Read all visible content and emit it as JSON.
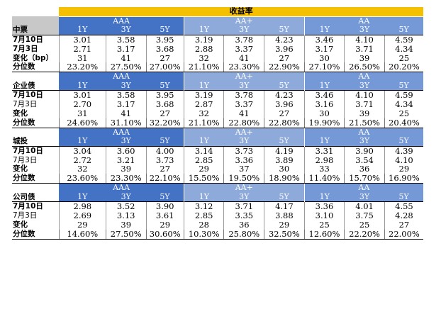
{
  "title": "收益率",
  "grade_labels": [
    "AAA",
    "AA+",
    "AA"
  ],
  "tenor_labels": [
    "1Y",
    "3Y",
    "5Y"
  ],
  "sections": [
    {
      "name": "中票",
      "rows": [
        {
          "label": "7月10日",
          "values": [
            "3.01",
            "3.58",
            "3.95",
            "3.19",
            "3.78",
            "4.23",
            "3.46",
            "4.10",
            "4.59"
          ]
        },
        {
          "label": "7月3日",
          "values": [
            "2.71",
            "3.17",
            "3.68",
            "2.88",
            "3.37",
            "3.96",
            "3.17",
            "3.71",
            "4.34"
          ]
        },
        {
          "label": "变化（bp）",
          "values": [
            "31",
            "41",
            "27",
            "32",
            "41",
            "27",
            "30",
            "39",
            "25"
          ]
        },
        {
          "label": "分位数",
          "values": [
            "23.20%",
            "27.50%",
            "27.00%",
            "21.10%",
            "23.30%",
            "22.90%",
            "27.10%",
            "26.50%",
            "20.20%"
          ]
        }
      ]
    },
    {
      "name": "企业债",
      "rows": [
        {
          "label": "7月10日",
          "values": [
            "3.01",
            "3.58",
            "3.95",
            "3.19",
            "3.78",
            "4.23",
            "3.46",
            "4.10",
            "4.59"
          ]
        },
        {
          "label": "7月3日",
          "values": [
            "2.70",
            "3.17",
            "3.68",
            "2.87",
            "3.37",
            "3.96",
            "3.16",
            "3.71",
            "4.34"
          ]
        },
        {
          "label": "变化",
          "values": [
            "31",
            "41",
            "27",
            "32",
            "41",
            "27",
            "30",
            "39",
            "25"
          ]
        },
        {
          "label": "分位数",
          "values": [
            "24.60%",
            "31.10%",
            "32.20%",
            "21.10%",
            "22.80%",
            "22.80%",
            "19.90%",
            "21.50%",
            "20.40%"
          ]
        }
      ]
    },
    {
      "name": "城投",
      "rows": [
        {
          "label": "7月10日",
          "values": [
            "3.04",
            "3.60",
            "4.00",
            "3.14",
            "3.73",
            "4.19",
            "3.31",
            "3.90",
            "4.39"
          ]
        },
        {
          "label": "7月3日",
          "values": [
            "2.72",
            "3.21",
            "3.73",
            "2.85",
            "3.36",
            "3.89",
            "2.98",
            "3.54",
            "4.10"
          ]
        },
        {
          "label": "变化",
          "values": [
            "32",
            "39",
            "27",
            "29",
            "37",
            "30",
            "33",
            "36",
            "29"
          ]
        },
        {
          "label": "分位数",
          "values": [
            "23.60%",
            "23.30%",
            "22.10%",
            "15.50%",
            "19.50%",
            "18.90%",
            "11.40%",
            "15.70%",
            "16.90%"
          ]
        }
      ]
    },
    {
      "name": "公司债",
      "rows": [
        {
          "label": "7月10日",
          "values": [
            "2.98",
            "3.52",
            "3.90",
            "3.12",
            "3.71",
            "4.17",
            "3.36",
            "4.01",
            "4.55"
          ]
        },
        {
          "label": "7月3日",
          "values": [
            "2.69",
            "3.13",
            "3.61",
            "2.85",
            "3.35",
            "3.88",
            "3.10",
            "3.75",
            "4.28"
          ]
        },
        {
          "label": "变化",
          "values": [
            "29",
            "39",
            "29",
            "28",
            "36",
            "29",
            "25",
            "25",
            "27"
          ]
        },
        {
          "label": "分位数",
          "values": [
            "14.60%",
            "27.50%",
            "30.60%",
            "10.30%",
            "25.80%",
            "32.50%",
            "12.60%",
            "22.20%",
            "22.00%"
          ]
        }
      ]
    }
  ]
}
